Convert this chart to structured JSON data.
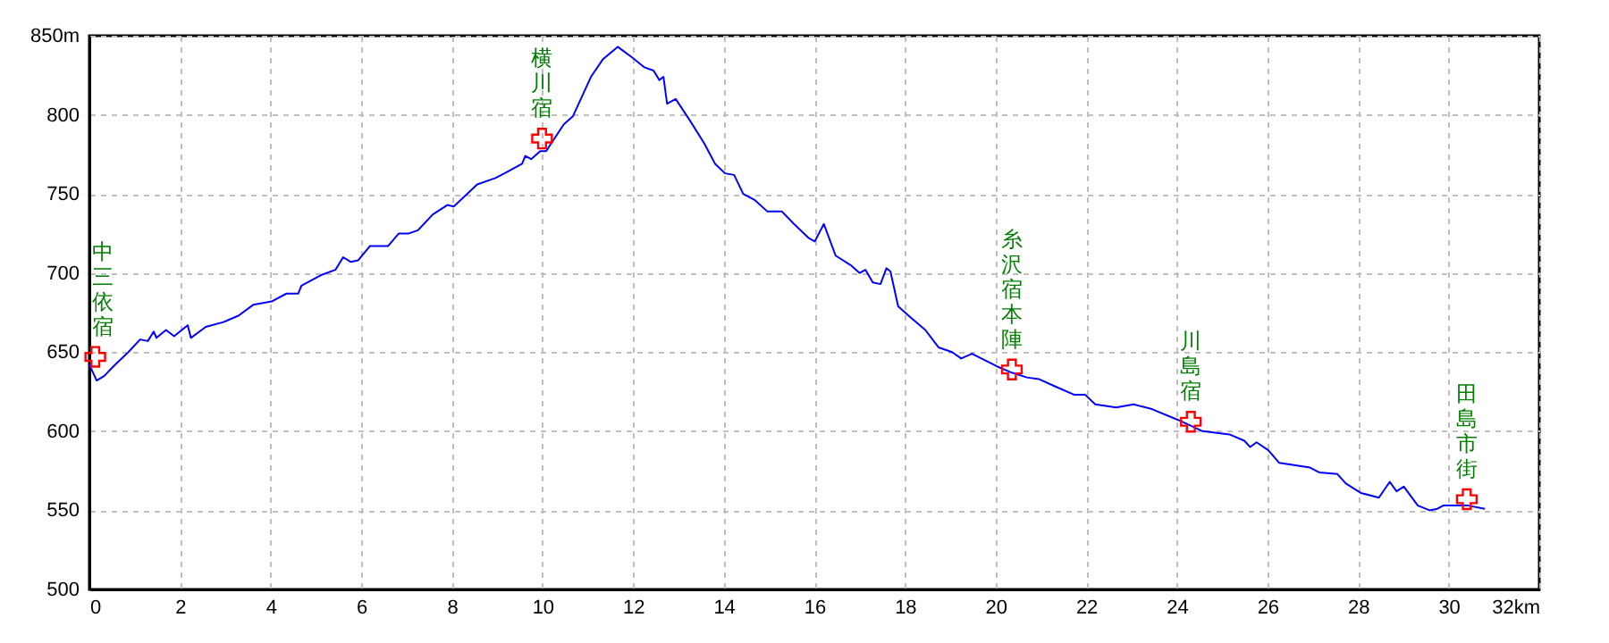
{
  "chart_data": {
    "type": "line",
    "x": [
      0,
      0.16,
      0.33,
      0.53,
      0.86,
      1.12,
      1.29,
      1.42,
      1.48,
      1.69,
      1.87,
      2.04,
      2.17,
      2.24,
      2.57,
      2.96,
      3.29,
      3.62,
      4.02,
      4.35,
      4.61,
      4.68,
      5.14,
      5.43,
      5.6,
      5.77,
      5.93,
      6.19,
      6.59,
      6.83,
      7.05,
      7.25,
      7.58,
      7.9,
      8.04,
      8.56,
      8.96,
      9.16,
      9.55,
      9.62,
      9.75,
      9.95,
      10.08,
      10.47,
      10.67,
      11.07,
      11.33,
      11.66,
      11.99,
      12.25,
      12.45,
      12.58,
      12.67,
      12.75,
      12.94,
      13.24,
      13.57,
      13.81,
      14.03,
      14.23,
      14.43,
      14.69,
      14.96,
      15.28,
      15.55,
      15.88,
      16.01,
      16.21,
      16.47,
      16.8,
      17.0,
      17.13,
      17.29,
      17.46,
      17.59,
      17.68,
      17.85,
      18.12,
      18.45,
      18.74,
      19.04,
      19.24,
      19.48,
      20.03,
      20.36,
      20.69,
      20.95,
      21.34,
      21.74,
      21.98,
      22.2,
      22.66,
      23.05,
      23.45,
      24.04,
      24.57,
      25.16,
      25.49,
      25.62,
      25.76,
      26.02,
      26.26,
      26.94,
      27.14,
      27.54,
      27.73,
      28.06,
      28.46,
      28.7,
      28.85,
      29.01,
      29.32,
      29.58,
      29.75,
      29.88,
      30.17,
      30.43,
      30.8
    ],
    "series": [
      {
        "color": "#0000ff",
        "values": [
          642,
          632,
          635,
          641,
          650,
          658,
          657,
          663,
          659,
          664,
          660,
          664,
          667,
          659,
          666,
          669,
          673,
          680,
          682,
          687,
          687,
          692,
          699,
          702,
          710,
          707,
          708,
          717,
          717,
          725,
          725,
          727,
          737,
          743,
          742,
          756,
          760,
          763,
          769,
          774,
          772,
          777,
          777,
          794,
          799,
          824,
          835,
          843,
          836,
          830,
          828,
          822,
          824,
          807,
          810,
          797,
          782,
          769,
          763,
          762,
          750,
          746,
          739,
          739,
          731,
          722,
          720,
          731,
          711,
          705,
          700,
          702,
          694,
          693,
          703,
          701,
          679,
          672,
          664,
          653,
          650,
          646,
          649,
          641,
          637,
          634,
          633,
          628,
          623,
          623,
          617,
          615,
          617,
          614,
          607,
          600,
          598,
          594,
          590,
          593,
          588,
          580,
          577,
          574,
          573,
          567,
          561,
          558,
          568,
          562,
          565,
          553,
          550,
          551,
          553,
          553,
          553,
          551
        ]
      }
    ],
    "xlim": [
      0,
      32
    ],
    "ylim": [
      500,
      850
    ],
    "xticks": [
      0,
      2,
      4,
      6,
      8,
      10,
      12,
      14,
      16,
      18,
      20,
      22,
      24,
      26,
      28,
      30,
      {
        "value": 32,
        "label": "32km"
      }
    ],
    "yticks": [
      500,
      550,
      600,
      650,
      700,
      750,
      800,
      {
        "value": 850,
        "label": "850m"
      }
    ],
    "grid": true,
    "marker": "none",
    "line_style": "solid",
    "annotations": [
      {
        "text": "中三依宿",
        "x": 0.13,
        "y": 647
      },
      {
        "text": "横川宿",
        "x": 9.99,
        "y": 785
      },
      {
        "text": "糸沢宿本陣",
        "x": 20.36,
        "y": 639
      },
      {
        "text": "川島宿",
        "x": 24.31,
        "y": 606
      },
      {
        "text": "田島市街",
        "x": 30.4,
        "y": 557
      }
    ]
  }
}
